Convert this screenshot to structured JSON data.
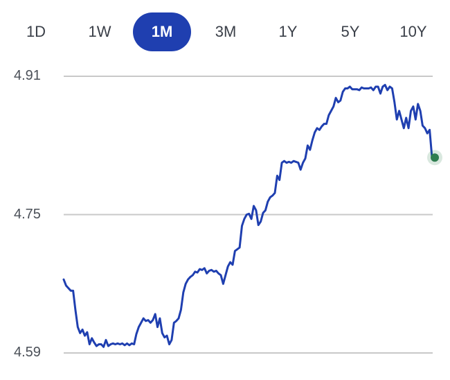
{
  "range_tabs": [
    {
      "label": "1D",
      "active": false
    },
    {
      "label": "1W",
      "active": false
    },
    {
      "label": "1M",
      "active": true
    },
    {
      "label": "3M",
      "active": false
    },
    {
      "label": "1Y",
      "active": false
    },
    {
      "label": "5Y",
      "active": false
    },
    {
      "label": "10Y",
      "active": false
    }
  ],
  "colors": {
    "line": "#1f3fb0",
    "accent_tab": "#1f3fb0",
    "endpoint": "#2e7d4f",
    "grid": "#c8c8c8"
  },
  "chart_data": {
    "type": "line",
    "title": "",
    "xlabel": "",
    "ylabel": "",
    "ylim": [
      4.59,
      4.91
    ],
    "yticks": [
      "4.91",
      "4.75",
      "4.59"
    ],
    "ytick_values": [
      4.91,
      4.75,
      4.59
    ],
    "grid": true,
    "series": [
      {
        "values": [
          4.675,
          4.668,
          4.665,
          4.662,
          4.662,
          4.64,
          4.62,
          4.613,
          4.617,
          4.61,
          4.614,
          4.6,
          4.607,
          4.602,
          4.598,
          4.6,
          4.6,
          4.597,
          4.605,
          4.598,
          4.6,
          4.601,
          4.6,
          4.601,
          4.6,
          4.601,
          4.599,
          4.601,
          4.599,
          4.601,
          4.6,
          4.612,
          4.62,
          4.625,
          4.63,
          4.627,
          4.628,
          4.625,
          4.628,
          4.635,
          4.62,
          4.63,
          4.613,
          4.608,
          4.61,
          4.6,
          4.605,
          4.625,
          4.627,
          4.63,
          4.64,
          4.66,
          4.67,
          4.675,
          4.678,
          4.68,
          4.684,
          4.683,
          4.687,
          4.686,
          4.688,
          4.682,
          4.685,
          4.686,
          4.684,
          4.685,
          4.682,
          4.68,
          4.67,
          4.68,
          4.69,
          4.695,
          4.692,
          4.708,
          4.71,
          4.712,
          4.737,
          4.745,
          4.75,
          4.751,
          4.745,
          4.76,
          4.755,
          4.738,
          4.742,
          4.752,
          4.755,
          4.765,
          4.77,
          4.772,
          4.775,
          4.795,
          4.79,
          4.81,
          4.812,
          4.81,
          4.811,
          4.81,
          4.812,
          4.811,
          4.81,
          4.802,
          4.81,
          4.815,
          4.83,
          4.825,
          4.836,
          4.845,
          4.85,
          4.848,
          4.852,
          4.855,
          4.855,
          4.865,
          4.87,
          4.875,
          4.885,
          4.88,
          4.882,
          4.892,
          4.896,
          4.896,
          4.898,
          4.895,
          4.895,
          4.895,
          4.894,
          4.897,
          4.896,
          4.896,
          4.896,
          4.897,
          4.894,
          4.898,
          4.898,
          4.89,
          4.898,
          4.9,
          4.894,
          4.898,
          4.896,
          4.88,
          4.86,
          4.87,
          4.86,
          4.85,
          4.862,
          4.85,
          4.87,
          4.875,
          4.86,
          4.878,
          4.87,
          4.853,
          4.85,
          4.844,
          4.848,
          4.816
        ]
      }
    ]
  }
}
